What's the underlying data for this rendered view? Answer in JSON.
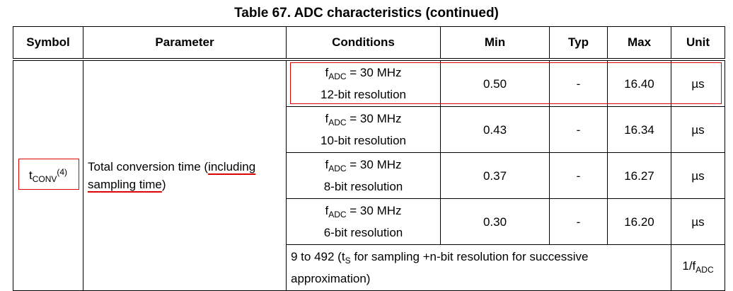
{
  "title": "Table 67. ADC characteristics (continued)",
  "table": {
    "headers": [
      "Symbol",
      "Parameter",
      "Conditions",
      "Min",
      "Typ",
      "Max",
      "Unit"
    ],
    "symbol": {
      "base": "t",
      "sub": "CONV",
      "sup": "(4)"
    },
    "parameter": {
      "start": "Total conversion time (",
      "marked": "including sampling time",
      "end": ")"
    },
    "rows": [
      {
        "f": "f",
        "sub": "ADC",
        "cond": "= 30 MHz",
        "resolution": "12-bit resolution",
        "min": "0.50",
        "typ": "-",
        "max": "16.40",
        "unit": "µs"
      },
      {
        "f": "f",
        "sub": "ADC",
        "cond": "= 30 MHz",
        "resolution": "10-bit resolution",
        "min": "0.43",
        "typ": "-",
        "max": "16.34",
        "unit": "µs"
      },
      {
        "f": "f",
        "sub": "ADC",
        "cond": "= 30 MHz",
        "resolution": "8-bit resolution",
        "min": "0.37",
        "typ": "-",
        "max": "16.27",
        "unit": "µs"
      },
      {
        "f": "f",
        "sub": "ADC",
        "cond": "= 30 MHz",
        "resolution": "6-bit resolution",
        "min": "0.30",
        "typ": "-",
        "max": "16.20",
        "unit": "µs"
      }
    ],
    "last_row": {
      "pre": "9 to 492 (t",
      "sub": "S",
      "post": "for sampling +n-bit resolution for successive approximation)",
      "unit": "1/f",
      "unit_sub": "ADC"
    }
  }
}
